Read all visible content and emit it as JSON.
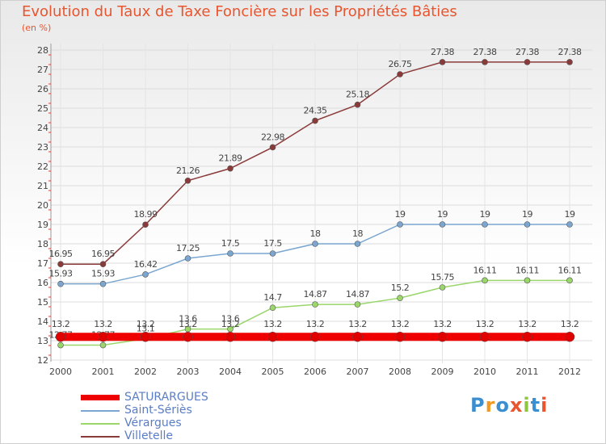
{
  "chart_data": {
    "type": "line",
    "title": "Evolution du Taux de Taxe Foncière sur les Propriétés Bâties",
    "unit_label": "(en %)",
    "x": [
      "2000",
      "2001",
      "2002",
      "2003",
      "2004",
      "2005",
      "2006",
      "2007",
      "2008",
      "2009",
      "2010",
      "2011",
      "2012"
    ],
    "ylim": [
      12,
      28
    ],
    "yticks": [
      "12",
      "13",
      "14",
      "15",
      "16",
      "17",
      "18",
      "19",
      "20",
      "21",
      "22",
      "23",
      "24",
      "25",
      "26",
      "27",
      "28"
    ],
    "grid": true,
    "legend_position": "bottom-left",
    "series": [
      {
        "name": "SATURARGUES",
        "color": "#ee0000",
        "values": [
          13.2,
          13.2,
          13.2,
          13.2,
          13.2,
          13.2,
          13.2,
          13.2,
          13.2,
          13.2,
          13.2,
          13.2,
          13.2
        ],
        "labels": [
          "13.2",
          "13.2",
          "13.2",
          "13.2",
          "13.2",
          "13.2",
          "13.2",
          "13.2",
          "13.2",
          "13.2",
          "13.2",
          "13.2",
          "13.2"
        ]
      },
      {
        "name": "Saint-Sériès",
        "color": "#7aa6cf",
        "values": [
          15.93,
          15.93,
          16.42,
          17.25,
          17.5,
          17.5,
          18,
          18,
          19,
          19,
          19,
          19,
          19
        ],
        "labels": [
          "15.93",
          "15.93",
          "16.42",
          "17.25",
          "17.5",
          "17.5",
          "18",
          "18",
          "19",
          "19",
          "19",
          "19",
          "19"
        ]
      },
      {
        "name": "Vérargues",
        "color": "#9ad66a",
        "values": [
          12.77,
          12.77,
          13.1,
          13.6,
          13.6,
          14.7,
          14.87,
          14.87,
          15.2,
          15.75,
          16.11,
          16.11,
          16.11
        ],
        "labels": [
          "12.77",
          "12.77",
          "13.1",
          "13.6",
          "13.6",
          "14.7",
          "14.87",
          "14.87",
          "15.2",
          "15.75",
          "16.11",
          "16.11",
          "16.11"
        ]
      },
      {
        "name": "Villetelle",
        "color": "#8b3a3a",
        "values": [
          16.95,
          16.95,
          18.99,
          21.26,
          21.89,
          22.98,
          24.35,
          25.18,
          26.75,
          27.38,
          27.38,
          27.38,
          27.38
        ],
        "labels": [
          "16.95",
          "16.95",
          "18.99",
          "21.26",
          "21.89",
          "22.98",
          "24.35",
          "25.18",
          "26.75",
          "27.38",
          "27.38",
          "27.38",
          "27.38"
        ]
      }
    ]
  },
  "logo": {
    "text": "Proxiti",
    "colors": [
      "#3b8fd0",
      "#f39a1e",
      "#3b8fd0",
      "#e8552f",
      "#8ec63f",
      "#3b8fd0",
      "#e8552f"
    ]
  }
}
